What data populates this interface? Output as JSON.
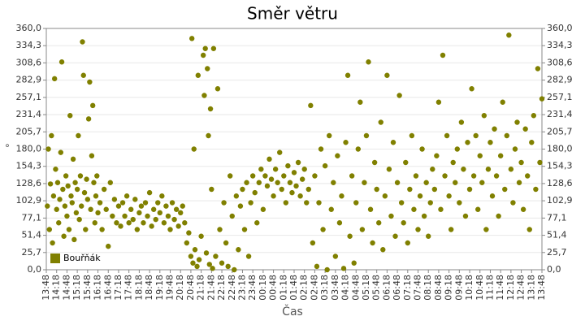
{
  "chart_data": {
    "type": "scatter",
    "title": "Směr větru",
    "x_label": "Čas",
    "y_label": "°",
    "legend": "lower left",
    "grid": true,
    "xlim": [
      0,
      24
    ],
    "ylim": [
      0,
      360
    ],
    "xticks": [
      {
        "value": 0,
        "label": "13:48"
      },
      {
        "value": 0.5,
        "label": "14:18"
      },
      {
        "value": 1,
        "label": "14:48"
      },
      {
        "value": 1.5,
        "label": "15:18"
      },
      {
        "value": 2,
        "label": "15:48"
      },
      {
        "value": 2.5,
        "label": "16:18"
      },
      {
        "value": 3,
        "label": "16:48"
      },
      {
        "value": 3.5,
        "label": "17:18"
      },
      {
        "value": 4,
        "label": "17:48"
      },
      {
        "value": 4.5,
        "label": "18:18"
      },
      {
        "value": 5,
        "label": "18:48"
      },
      {
        "value": 5.5,
        "label": "19:18"
      },
      {
        "value": 6,
        "label": "19:48"
      },
      {
        "value": 6.5,
        "label": "20:18"
      },
      {
        "value": 7,
        "label": "20:48"
      },
      {
        "value": 7.5,
        "label": "21:18"
      },
      {
        "value": 8,
        "label": "21:48"
      },
      {
        "value": 8.5,
        "label": "22:18"
      },
      {
        "value": 9,
        "label": "22:48"
      },
      {
        "value": 9.5,
        "label": "23:18"
      },
      {
        "value": 10,
        "label": "23:48"
      },
      {
        "value": 10.5,
        "label": "00:18"
      },
      {
        "value": 11,
        "label": "00:48"
      },
      {
        "value": 11.5,
        "label": "01:18"
      },
      {
        "value": 12,
        "label": "01:48"
      },
      {
        "value": 12.5,
        "label": "02:18"
      },
      {
        "value": 13,
        "label": "02:48"
      },
      {
        "value": 13.5,
        "label": "03:18"
      },
      {
        "value": 14,
        "label": "03:48"
      },
      {
        "value": 14.5,
        "label": "04:18"
      },
      {
        "value": 15,
        "label": "04:48"
      },
      {
        "value": 15.5,
        "label": "05:18"
      },
      {
        "value": 16,
        "label": "05:48"
      },
      {
        "value": 16.5,
        "label": "06:18"
      },
      {
        "value": 17,
        "label": "06:48"
      },
      {
        "value": 17.5,
        "label": "07:18"
      },
      {
        "value": 18,
        "label": "07:48"
      },
      {
        "value": 18.5,
        "label": "08:18"
      },
      {
        "value": 19,
        "label": "08:48"
      },
      {
        "value": 19.5,
        "label": "09:18"
      },
      {
        "value": 20,
        "label": "09:48"
      },
      {
        "value": 20.5,
        "label": "10:18"
      },
      {
        "value": 21,
        "label": "10:48"
      },
      {
        "value": 21.5,
        "label": "11:18"
      },
      {
        "value": 22,
        "label": "11:48"
      },
      {
        "value": 22.5,
        "label": "12:18"
      },
      {
        "value": 23,
        "label": "12:48"
      },
      {
        "value": 23.5,
        "label": "13:18"
      },
      {
        "value": 24,
        "label": "13:48"
      }
    ],
    "yticks": [
      {
        "value": 0,
        "label": "0,0"
      },
      {
        "value": 25.7,
        "label": "25,7"
      },
      {
        "value": 51.4,
        "label": "51,4"
      },
      {
        "value": 77.1,
        "label": "77,1"
      },
      {
        "value": 102.9,
        "label": "102,9"
      },
      {
        "value": 128.6,
        "label": "128,6"
      },
      {
        "value": 154.3,
        "label": "154,3"
      },
      {
        "value": 180,
        "label": "180,0"
      },
      {
        "value": 205.7,
        "label": "205,7"
      },
      {
        "value": 231.4,
        "label": "231,4"
      },
      {
        "value": 257.1,
        "label": "257,1"
      },
      {
        "value": 282.9,
        "label": "282,9"
      },
      {
        "value": 308.6,
        "label": "308,6"
      },
      {
        "value": 334.3,
        "label": "334,3"
      },
      {
        "value": 360,
        "label": "360,0"
      }
    ],
    "series": [
      {
        "name": "Bouřňák",
        "color": "#808000",
        "x": [
          0.05,
          0.1,
          0.15,
          0.2,
          0.25,
          0.3,
          0.35,
          0.4,
          0.45,
          0.5,
          0.55,
          0.6,
          0.65,
          0.7,
          0.75,
          0.8,
          0.85,
          0.9,
          0.95,
          1.0,
          1.05,
          1.1,
          1.15,
          1.2,
          1.25,
          1.3,
          1.35,
          1.4,
          1.45,
          1.5,
          1.55,
          1.6,
          1.65,
          1.7,
          1.75,
          1.8,
          1.85,
          1.9,
          1.95,
          2.0,
          2.05,
          2.1,
          2.15,
          2.2,
          2.25,
          2.3,
          2.35,
          2.4,
          2.45,
          2.5,
          2.6,
          2.7,
          2.8,
          2.9,
          3.0,
          3.1,
          3.2,
          3.3,
          3.4,
          3.5,
          3.6,
          3.7,
          3.8,
          3.9,
          4.0,
          4.1,
          4.2,
          4.3,
          4.4,
          4.5,
          4.6,
          4.7,
          4.8,
          4.9,
          5.0,
          5.1,
          5.2,
          5.3,
          5.4,
          5.5,
          5.6,
          5.7,
          5.8,
          5.9,
          6.0,
          6.1,
          6.2,
          6.3,
          6.4,
          6.5,
          6.6,
          6.7,
          6.8,
          6.9,
          7.0,
          7.05,
          7.1,
          7.15,
          7.2,
          7.3,
          7.35,
          7.4,
          7.5,
          7.6,
          7.65,
          7.7,
          7.75,
          7.8,
          7.85,
          7.9,
          7.95,
          8.0,
          8.05,
          8.1,
          8.2,
          8.3,
          8.4,
          8.5,
          8.6,
          8.7,
          8.8,
          8.9,
          9.0,
          9.1,
          9.2,
          9.3,
          9.4,
          9.5,
          9.6,
          9.7,
          9.8,
          9.9,
          10.0,
          10.1,
          10.2,
          10.3,
          10.4,
          10.5,
          10.6,
          10.7,
          10.8,
          10.9,
          11.0,
          11.1,
          11.2,
          11.3,
          11.4,
          11.5,
          11.6,
          11.7,
          11.8,
          11.9,
          12.0,
          12.1,
          12.2,
          12.3,
          12.4,
          12.5,
          12.6,
          12.7,
          12.8,
          12.9,
          13.0,
          13.1,
          13.2,
          13.3,
          13.4,
          13.5,
          13.6,
          13.7,
          13.8,
          13.9,
          14.0,
          14.1,
          14.2,
          14.3,
          14.4,
          14.5,
          14.6,
          14.7,
          14.8,
          14.9,
          15.0,
          15.1,
          15.2,
          15.3,
          15.4,
          15.5,
          15.6,
          15.7,
          15.8,
          15.9,
          16.0,
          16.1,
          16.2,
          16.3,
          16.4,
          16.5,
          16.6,
          16.7,
          16.8,
          16.9,
          17.0,
          17.1,
          17.2,
          17.3,
          17.4,
          17.5,
          17.6,
          17.7,
          17.8,
          17.9,
          18.0,
          18.1,
          18.2,
          18.3,
          18.4,
          18.5,
          18.6,
          18.7,
          18.8,
          18.9,
          19.0,
          19.1,
          19.2,
          19.3,
          19.4,
          19.5,
          19.6,
          19.7,
          19.8,
          19.9,
          20.0,
          20.1,
          20.2,
          20.3,
          20.4,
          20.5,
          20.6,
          20.7,
          20.8,
          20.9,
          21.0,
          21.1,
          21.2,
          21.3,
          21.4,
          21.5,
          21.6,
          21.7,
          21.8,
          21.9,
          22.0,
          22.1,
          22.2,
          22.3,
          22.4,
          22.5,
          22.6,
          22.7,
          22.8,
          22.9,
          23.0,
          23.1,
          23.2,
          23.3,
          23.4,
          23.5,
          23.6,
          23.7,
          23.8,
          23.9,
          24.0
        ],
        "values": [
          95,
          180,
          60,
          128,
          200,
          40,
          110,
          285,
          150,
          90,
          130,
          70,
          105,
          175,
          310,
          120,
          50,
          95,
          140,
          80,
          125,
          60,
          230,
          110,
          100,
          165,
          45,
          130,
          85,
          120,
          200,
          75,
          140,
          95,
          340,
          290,
          115,
          60,
          135,
          105,
          225,
          280,
          90,
          170,
          245,
          130,
          70,
          110,
          140,
          85,
          100,
          60,
          120,
          90,
          35,
          130,
          80,
          105,
          70,
          95,
          65,
          100,
          80,
          110,
          70,
          90,
          75,
          105,
          60,
          85,
          95,
          70,
          100,
          80,
          115,
          65,
          90,
          75,
          100,
          85,
          110,
          70,
          95,
          80,
          60,
          100,
          75,
          90,
          65,
          85,
          95,
          70,
          40,
          55,
          20,
          345,
          10,
          180,
          30,
          5,
          290,
          15,
          50,
          320,
          260,
          330,
          25,
          300,
          200,
          8,
          240,
          120,
          2,
          330,
          20,
          270,
          60,
          10,
          100,
          40,
          5,
          140,
          80,
          0,
          110,
          30,
          95,
          120,
          60,
          130,
          20,
          100,
          140,
          115,
          70,
          130,
          150,
          90,
          140,
          125,
          165,
          135,
          110,
          150,
          130,
          175,
          120,
          140,
          100,
          155,
          130,
          115,
          145,
          125,
          160,
          110,
          135,
          150,
          100,
          120,
          245,
          40,
          140,
          5,
          100,
          180,
          60,
          155,
          0,
          200,
          90,
          130,
          20,
          170,
          70,
          110,
          2,
          190,
          290,
          50,
          140,
          10,
          100,
          180,
          250,
          60,
          130,
          200,
          310,
          90,
          40,
          160,
          120,
          70,
          220,
          30,
          110,
          290,
          150,
          80,
          190,
          50,
          130,
          260,
          100,
          70,
          160,
          40,
          120,
          200,
          90,
          140,
          60,
          110,
          180,
          80,
          130,
          50,
          100,
          150,
          120,
          170,
          250,
          90,
          320,
          140,
          200,
          110,
          60,
          160,
          130,
          180,
          100,
          220,
          150,
          80,
          190,
          120,
          270,
          140,
          200,
          90,
          170,
          130,
          230,
          60,
          150,
          190,
          110,
          210,
          140,
          80,
          170,
          250,
          120,
          200,
          350,
          150,
          100,
          180,
          220,
          130,
          160,
          90,
          210,
          140,
          60,
          190,
          230,
          120,
          300,
          160,
          255
        ]
      }
    ]
  }
}
